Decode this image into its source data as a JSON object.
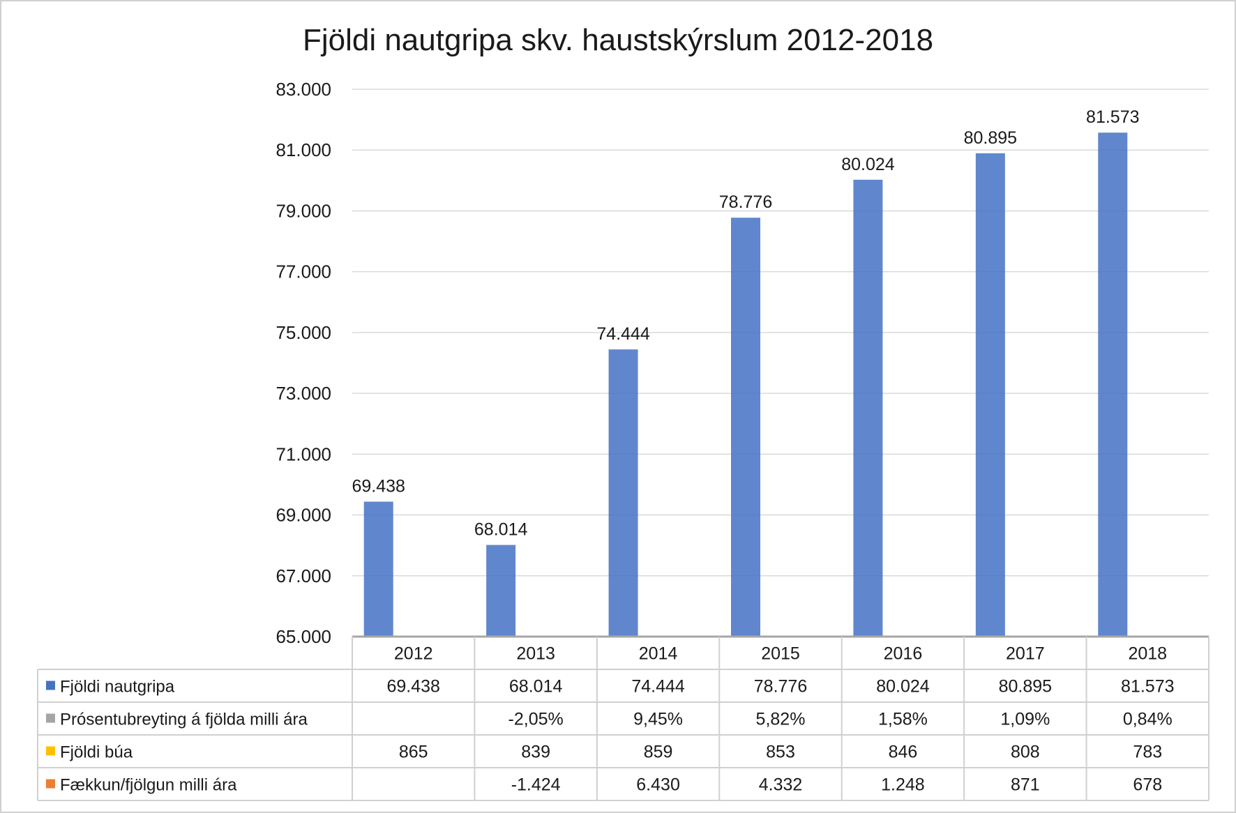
{
  "chart_data": {
    "type": "bar",
    "title": "Fjöldi nautgripa skv. haustskýrslum 2012-2018",
    "categories": [
      "2012",
      "2013",
      "2014",
      "2015",
      "2016",
      "2017",
      "2018"
    ],
    "ylim": [
      65000,
      83000
    ],
    "yticks": [
      65000,
      67000,
      69000,
      71000,
      73000,
      75000,
      77000,
      79000,
      81000,
      83000
    ],
    "ytick_labels": [
      "65.000",
      "67.000",
      "69.000",
      "71.000",
      "73.000",
      "75.000",
      "77.000",
      "79.000",
      "81.000",
      "83.000"
    ],
    "grid": true,
    "series": [
      {
        "name": "Fjöldi nautgripa",
        "color": "#4472c4",
        "plotted": true,
        "values": [
          69438,
          68014,
          74444,
          78776,
          80024,
          80895,
          81573
        ],
        "labels": [
          "69.438",
          "68.014",
          "74.444",
          "78.776",
          "80.024",
          "80.895",
          "81.573"
        ]
      },
      {
        "name": "Prósentubreyting á fjölda milli ára",
        "color": "#a5a5a5",
        "plotted": false,
        "values": [
          null,
          -2.05,
          9.45,
          5.82,
          1.58,
          1.09,
          0.84
        ],
        "labels": [
          "",
          "-2,05%",
          "9,45%",
          "5,82%",
          "1,58%",
          "1,09%",
          "0,84%"
        ]
      },
      {
        "name": "Fjöldi búa",
        "color": "#ffc000",
        "plotted": false,
        "values": [
          865,
          839,
          859,
          853,
          846,
          808,
          783
        ],
        "labels": [
          "865",
          "839",
          "859",
          "853",
          "846",
          "808",
          "783"
        ]
      },
      {
        "name": "Fækkun/fjölgun milli ára",
        "color": "#ed7d31",
        "plotted": false,
        "values": [
          null,
          -1424,
          6430,
          4332,
          1248,
          871,
          678
        ],
        "labels": [
          "",
          "-1.424",
          "6.430",
          "4.332",
          "1.248",
          "871",
          "678"
        ]
      }
    ],
    "legend": "data-table-below"
  }
}
